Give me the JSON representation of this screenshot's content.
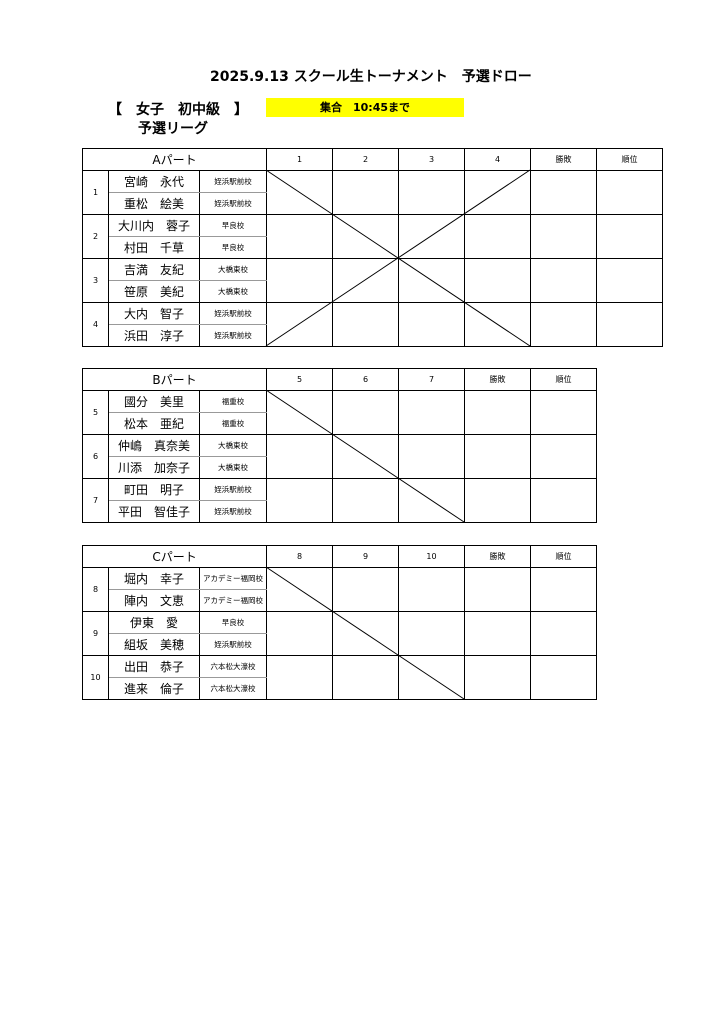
{
  "title": "2025.9.13 スクール生トーナメント　予選ドロー",
  "category": "【　女子　初中級　】",
  "subtitle": "予選リーグ",
  "gathering": "集合　10:45まで",
  "colors": {
    "highlight": "#ffff00"
  },
  "result_label": "勝敗",
  "rank_label": "順位",
  "parts": [
    {
      "name": "Aパート",
      "columns": [
        "1",
        "2",
        "3",
        "4"
      ],
      "teams": [
        {
          "no": "1",
          "players": [
            {
              "name": "宮崎　永代",
              "school": "姪浜駅前校"
            },
            {
              "name": "重松　絵美",
              "school": "姪浜駅前校"
            }
          ]
        },
        {
          "no": "2",
          "players": [
            {
              "name": "大川内　蓉子",
              "school": "早良校"
            },
            {
              "name": "村田　千草",
              "school": "早良校"
            }
          ]
        },
        {
          "no": "3",
          "players": [
            {
              "name": "吉満　友紀",
              "school": "大橋東校"
            },
            {
              "name": "笹原　美紀",
              "school": "大橋東校"
            }
          ]
        },
        {
          "no": "4",
          "players": [
            {
              "name": "大内　智子",
              "school": "姪浜駅前校"
            },
            {
              "name": "浜田　淳子",
              "school": "姪浜駅前校"
            }
          ]
        }
      ]
    },
    {
      "name": "Bパート",
      "columns": [
        "5",
        "6",
        "7"
      ],
      "teams": [
        {
          "no": "5",
          "players": [
            {
              "name": "國分　美里",
              "school": "福重校"
            },
            {
              "name": "松本　亜紀",
              "school": "福重校"
            }
          ]
        },
        {
          "no": "6",
          "players": [
            {
              "name": "仲嶋　真奈美",
              "school": "大橋東校"
            },
            {
              "name": "川添　加奈子",
              "school": "大橋東校"
            }
          ]
        },
        {
          "no": "7",
          "players": [
            {
              "name": "町田　明子",
              "school": "姪浜駅前校"
            },
            {
              "name": "平田　智佳子",
              "school": "姪浜駅前校"
            }
          ]
        }
      ]
    },
    {
      "name": "Cパート",
      "columns": [
        "8",
        "9",
        "10"
      ],
      "teams": [
        {
          "no": "8",
          "players": [
            {
              "name": "堀内　幸子",
              "school": "アカデミー福岡校"
            },
            {
              "name": "陣内　文恵",
              "school": "アカデミー福岡校"
            }
          ]
        },
        {
          "no": "9",
          "players": [
            {
              "name": "伊東　愛",
              "school": "早良校"
            },
            {
              "name": "組坂　美穂",
              "school": "姪浜駅前校"
            }
          ]
        },
        {
          "no": "10",
          "players": [
            {
              "name": "出田　恭子",
              "school": "六本松大濠校"
            },
            {
              "name": "進来　倫子",
              "school": "六本松大濠校"
            }
          ]
        }
      ]
    }
  ]
}
